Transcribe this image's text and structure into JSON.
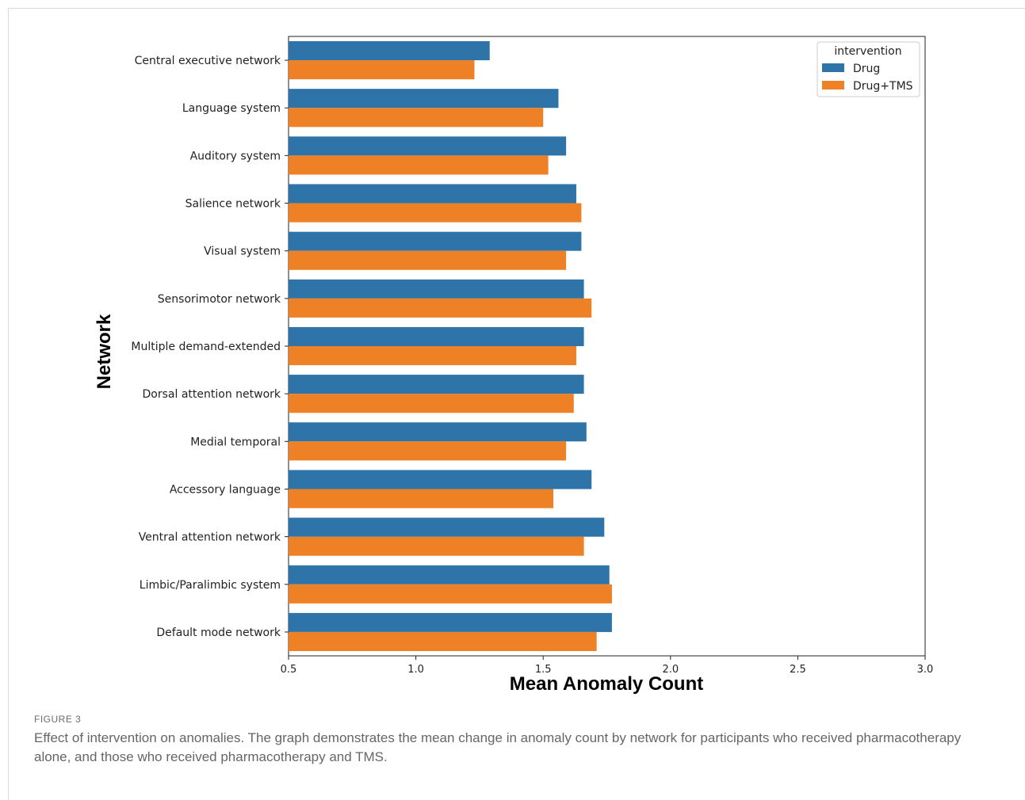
{
  "caption": {
    "label": "FIGURE 3",
    "text": "Effect of intervention on anomalies. The graph demonstrates the mean change in anomaly count by network for participants who received pharmacotherapy alone, and those who received pharmacotherapy and TMS."
  },
  "chart_data": {
    "type": "bar",
    "orientation": "horizontal",
    "title": "",
    "xlabel": "Mean Anomaly Count",
    "ylabel": "Network",
    "xlim": [
      0.5,
      3.0
    ],
    "xticks": [
      "0.5",
      "1.0",
      "1.5",
      "2.0",
      "2.5",
      "3.0"
    ],
    "grid": false,
    "legend": {
      "title": "intervention",
      "placement": "top-right"
    },
    "categories": [
      "Central executive network",
      "Language system",
      "Auditory system",
      "Salience network",
      "Visual system",
      "Sensorimotor network",
      "Multiple demand-extended",
      "Dorsal attention network",
      "Medial temporal",
      "Accessory language",
      "Ventral attention network",
      "Limbic/Paralimbic system",
      "Default mode network"
    ],
    "series": [
      {
        "name": "Drug",
        "color": "#2f74a8",
        "values": [
          1.29,
          1.56,
          1.59,
          1.63,
          1.65,
          1.66,
          1.66,
          1.66,
          1.67,
          1.69,
          1.74,
          1.76,
          1.77
        ]
      },
      {
        "name": "Drug+TMS",
        "color": "#ee8025",
        "values": [
          1.23,
          1.5,
          1.52,
          1.65,
          1.59,
          1.69,
          1.63,
          1.62,
          1.59,
          1.54,
          1.66,
          1.77,
          1.71
        ]
      }
    ]
  }
}
